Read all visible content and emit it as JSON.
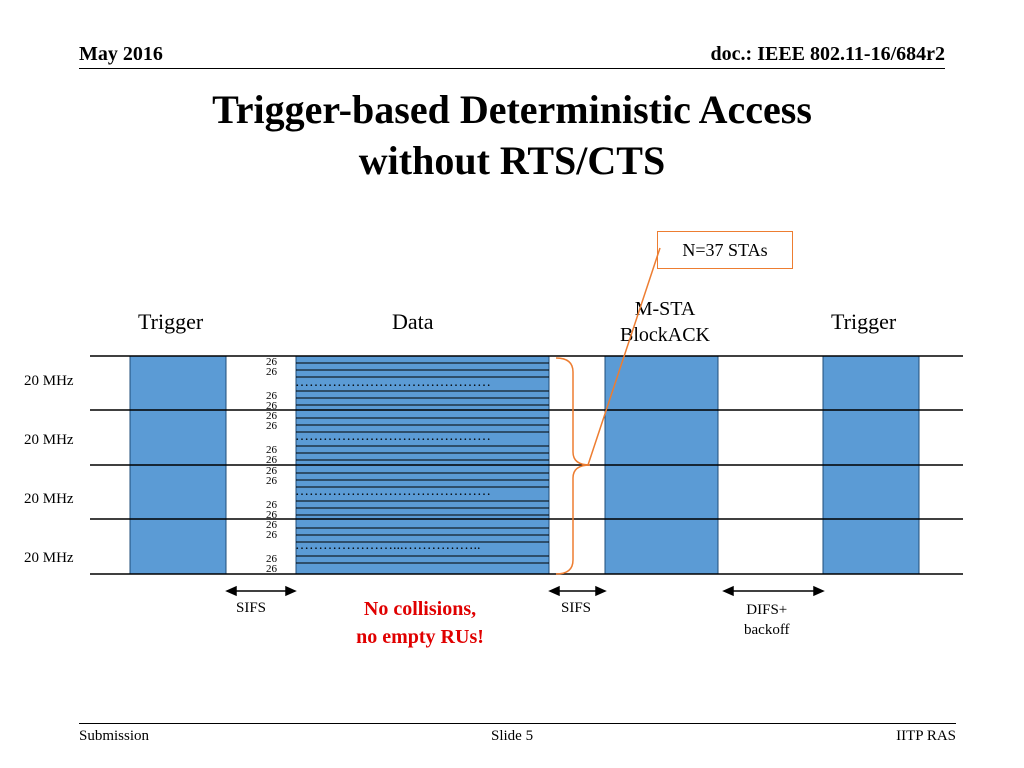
{
  "header": {
    "date": "May 2016",
    "doc": "doc.: IEEE 802.11-16/684r2"
  },
  "title": {
    "line1": "Trigger-based Deterministic Access",
    "line2": "without RTS/CTS"
  },
  "diagram": {
    "callout": "N=37 STAs",
    "frame_labels": {
      "trigger_left": "Trigger",
      "data": "Data",
      "mblock_line1": "M-STA",
      "mblock_line2": "BlockACK",
      "trigger_right": "Trigger"
    },
    "channels": [
      "20 MHz",
      "20 MHz",
      "20 MHz",
      "20 MHz"
    ],
    "ru_label": "26",
    "dots": [
      "……………………………………",
      "……………………………………",
      "……………………………………",
      "…………………...…………….."
    ],
    "gaps": {
      "sifs1": "SIFS",
      "sifs2": "SIFS",
      "difs_line1": "DIFS+",
      "difs_line2": "backoff"
    },
    "emphasis": {
      "line1": "No collisions,",
      "line2": "no empty RUs!"
    },
    "colors": {
      "block": "#5b9bd5",
      "callout_border": "#ed7d31",
      "emphasis": "#e00000"
    }
  },
  "footer": {
    "left": "Submission",
    "center": "Slide 5",
    "right": "IITP RAS"
  }
}
